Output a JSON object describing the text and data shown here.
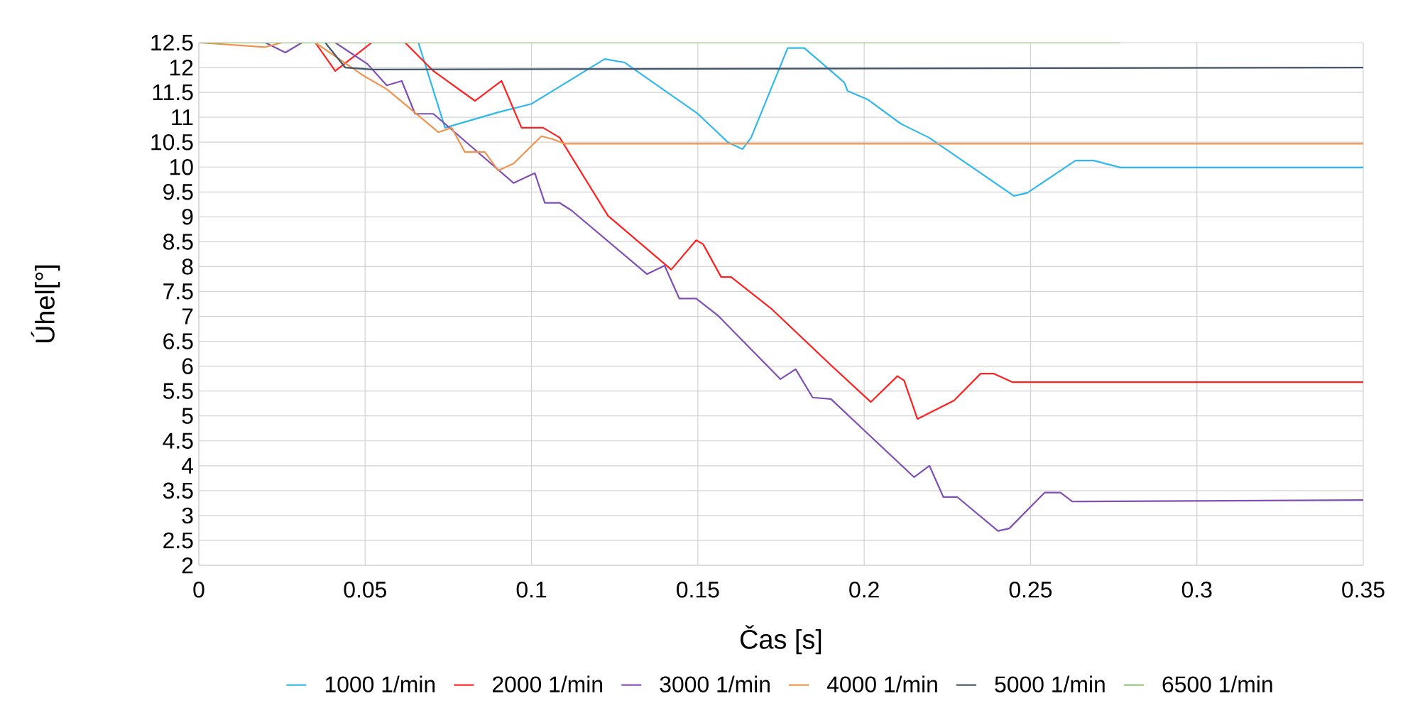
{
  "chart_data": {
    "type": "line",
    "xlabel": "Čas [s]",
    "ylabel": "Úhel[°]",
    "xlim": [
      0,
      0.35
    ],
    "xticks": [
      0,
      0.05,
      0.1,
      0.15,
      0.2,
      0.25,
      0.3,
      0.35
    ],
    "ylim": [
      2,
      12.5
    ],
    "yticks": [
      2,
      2.5,
      3,
      3.5,
      4,
      4.5,
      5,
      5.5,
      6,
      6.5,
      7,
      7.5,
      8,
      8.5,
      9,
      9.5,
      10,
      10.5,
      11,
      11.5,
      12,
      12.5
    ],
    "grid": true,
    "legend": "bottom",
    "series": [
      {
        "name": "1000 1/min",
        "color": "#2eb8ec",
        "x": [
          0,
          0.066,
          0.074,
          0.09,
          0.1,
          0.122,
          0.128,
          0.15,
          0.159,
          0.1634,
          0.166,
          0.177,
          0.182,
          0.19,
          0.194,
          0.195,
          0.201,
          0.211,
          0.2195,
          0.245,
          0.249,
          0.2635,
          0.269,
          0.277,
          0.35
        ],
        "values": [
          12.5,
          12.5,
          10.79,
          11.1,
          11.27,
          12.17,
          12.1,
          11.07,
          10.5,
          10.36,
          10.59,
          12.39,
          12.39,
          11.93,
          11.7,
          11.53,
          11.36,
          10.87,
          10.59,
          9.42,
          9.48,
          10.13,
          10.13,
          9.99,
          9.99
        ]
      },
      {
        "name": "2000 1/min",
        "color": "#ff2020",
        "x": [
          0,
          0.035,
          0.041,
          0.052,
          0.062,
          0.0705,
          0.083,
          0.091,
          0.097,
          0.1035,
          0.1085,
          0.123,
          0.142,
          0.1495,
          0.1516,
          0.157,
          0.16,
          0.172,
          0.19,
          0.202,
          0.21,
          0.212,
          0.216,
          0.227,
          0.235,
          0.239,
          0.2445,
          0.35
        ],
        "values": [
          12.5,
          12.5,
          11.93,
          12.5,
          12.5,
          11.93,
          11.33,
          11.73,
          10.79,
          10.79,
          10.59,
          9.02,
          7.94,
          8.53,
          8.45,
          7.79,
          7.79,
          7.16,
          6.02,
          5.28,
          5.8,
          5.71,
          4.94,
          5.31,
          5.85,
          5.85,
          5.68,
          5.68
        ]
      },
      {
        "name": "3000 1/min",
        "color": "#7f4fb5",
        "x": [
          0,
          0.02,
          0.026,
          0.031,
          0.041,
          0.0507,
          0.0565,
          0.061,
          0.065,
          0.0705,
          0.0946,
          0.101,
          0.104,
          0.1085,
          0.112,
          0.1347,
          0.14,
          0.1444,
          0.1495,
          0.156,
          0.1748,
          0.1794,
          0.1845,
          0.19,
          0.2,
          0.215,
          0.2196,
          0.2238,
          0.228,
          0.2402,
          0.2436,
          0.2542,
          0.259,
          0.2626,
          0.35
        ],
        "values": [
          12.5,
          12.5,
          12.3,
          12.5,
          12.5,
          12.07,
          11.64,
          11.73,
          11.07,
          11.07,
          9.68,
          9.88,
          9.28,
          9.28,
          9.13,
          7.85,
          8.02,
          7.36,
          7.36,
          7.02,
          5.74,
          5.94,
          5.37,
          5.34,
          4.71,
          3.77,
          4.0,
          3.37,
          3.37,
          2.69,
          2.74,
          3.46,
          3.46,
          3.28,
          3.31
        ]
      },
      {
        "name": "4000 1/min",
        "color": "#f0934e",
        "x": [
          0,
          0.02,
          0.025,
          0.035,
          0.0494,
          0.0566,
          0.072,
          0.076,
          0.08,
          0.086,
          0.09,
          0.0946,
          0.103,
          0.1064,
          0.1098,
          0.35
        ],
        "values": [
          12.5,
          12.41,
          12.5,
          12.5,
          11.84,
          11.56,
          10.7,
          10.79,
          10.3,
          10.3,
          9.93,
          10.07,
          10.62,
          10.56,
          10.47,
          10.47
        ]
      },
      {
        "name": "5000 1/min",
        "color": "#44546a",
        "x": [
          0.038,
          0.044,
          0.052,
          0.35
        ],
        "values": [
          12.5,
          12.0,
          11.96,
          12.0
        ]
      },
      {
        "name": "6500 1/min",
        "color": "#93c47d",
        "x": [
          0,
          0.277
        ],
        "values": [
          12.5,
          12.5
        ]
      }
    ]
  }
}
